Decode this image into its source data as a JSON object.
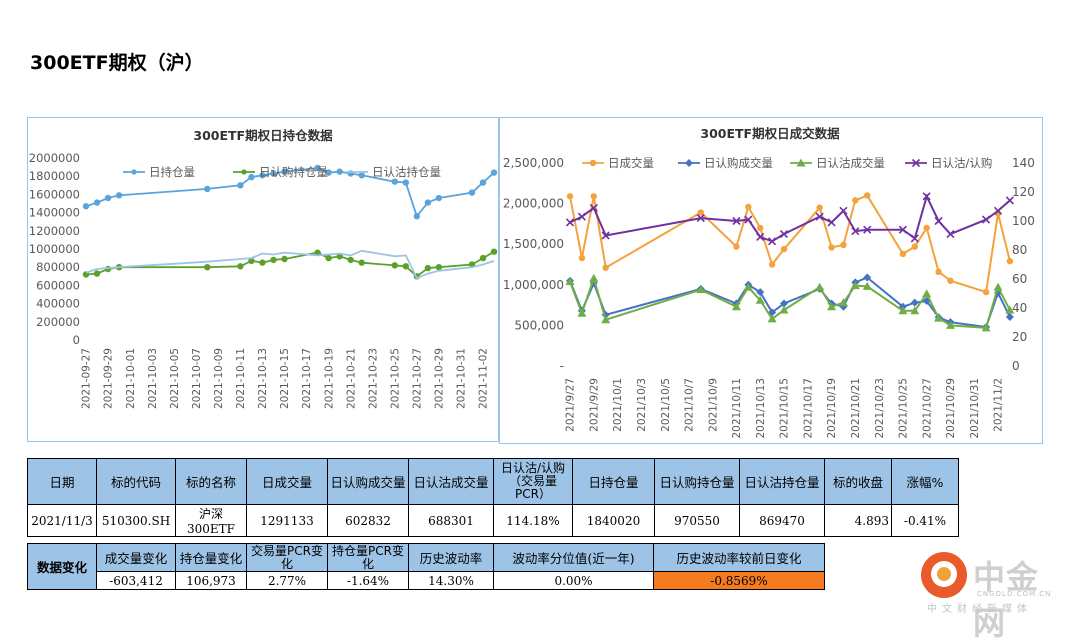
{
  "page_title": "300ETF期权（沪）",
  "chart_data": [
    {
      "type": "line",
      "title": "300ETF期权日持仓数据",
      "categories": [
        "2021-09-27",
        "2021-09-28",
        "2021-09-29",
        "2021-09-30",
        "2021-10-08",
        "2021-10-11",
        "2021-10-12",
        "2021-10-13",
        "2021-10-14",
        "2021-10-15",
        "2021-10-18",
        "2021-10-19",
        "2021-10-20",
        "2021-10-21",
        "2021-10-22",
        "2021-10-25",
        "2021-10-26",
        "2021-10-27",
        "2021-10-28",
        "2021-10-29",
        "2021-11-01",
        "2021-11-02",
        "2021-11-03"
      ],
      "x_labels": [
        "2021-09-27",
        "2021-09-29",
        "2021-10-01",
        "2021-10-03",
        "2021-10-05",
        "2021-10-07",
        "2021-10-09",
        "2021-10-11",
        "2021-10-13",
        "2021-10-15",
        "2021-10-17",
        "2021-10-19",
        "2021-10-21",
        "2021-10-23",
        "2021-10-25",
        "2021-10-27",
        "2021-10-29",
        "2021-10-31",
        "2021-11-02"
      ],
      "series": [
        {
          "name": "日持仓量",
          "color": "#5ba3d9",
          "values": [
            1470000,
            1510000,
            1560000,
            1590000,
            1660000,
            1700000,
            1790000,
            1810000,
            1830000,
            1850000,
            1890000,
            1840000,
            1850000,
            1830000,
            1810000,
            1740000,
            1730000,
            1360000,
            1510000,
            1560000,
            1620000,
            1730000,
            1840020
          ]
        },
        {
          "name": "日认购持仓量",
          "color": "#5aa02c",
          "values": [
            720000,
            730000,
            780000,
            800000,
            800000,
            810000,
            870000,
            850000,
            880000,
            890000,
            960000,
            900000,
            920000,
            880000,
            850000,
            820000,
            810000,
            700000,
            790000,
            800000,
            830000,
            900000,
            970550
          ]
        },
        {
          "name": "日认沽持仓量",
          "color": "#9dc3e6",
          "values": [
            740000,
            780000,
            790000,
            800000,
            860000,
            890000,
            900000,
            950000,
            940000,
            960000,
            930000,
            940000,
            950000,
            930000,
            980000,
            920000,
            930000,
            680000,
            730000,
            760000,
            800000,
            830000,
            869470
          ]
        }
      ],
      "ylim": [
        0,
        2000000
      ],
      "y_ticks": [
        "0",
        "200000",
        "400000",
        "600000",
        "800000",
        "1000000",
        "1200000",
        "1400000",
        "1600000",
        "1800000",
        "2000000"
      ]
    },
    {
      "type": "line",
      "title": "300ETF期权日成交数据",
      "categories": [
        "2021/9/27",
        "2021/9/28",
        "2021/9/29",
        "2021/9/30",
        "2021/10/8",
        "2021/10/11",
        "2021/10/12",
        "2021/10/13",
        "2021/10/14",
        "2021/10/15",
        "2021/10/18",
        "2021/10/19",
        "2021/10/20",
        "2021/10/21",
        "2021/10/22",
        "2021/10/25",
        "2021/10/26",
        "2021/10/27",
        "2021/10/28",
        "2021/10/29",
        "2021/11/1",
        "2021/11/2",
        "2021/11/3"
      ],
      "x_labels": [
        "2021/9/27",
        "2021/9/29",
        "2021/10/1",
        "2021/10/3",
        "2021/10/5",
        "2021/10/7",
        "2021/10/9",
        "2021/10/11",
        "2021/10/13",
        "2021/10/15",
        "2021/10/17",
        "2021/10/19",
        "2021/10/21",
        "2021/10/23",
        "2021/10/25",
        "2021/10/27",
        "2021/10/29",
        "2021/10/31",
        "2021/11/2"
      ],
      "series": [
        {
          "name": "日成交量",
          "axis": "left",
          "color": "#f4a23b",
          "marker": "circle",
          "values": [
            2090000,
            1330000,
            2090000,
            1210000,
            1890000,
            1470000,
            1960000,
            1700000,
            1250000,
            1440000,
            1950000,
            1460000,
            1490000,
            2040000,
            2100000,
            1380000,
            1470000,
            1700000,
            1160000,
            1050000,
            910000,
            1880000,
            1291133
          ]
        },
        {
          "name": "日认购成交量",
          "axis": "left",
          "color": "#4472c4",
          "marker": "diamond",
          "values": [
            1050000,
            680000,
            1020000,
            630000,
            950000,
            770000,
            1000000,
            910000,
            660000,
            770000,
            950000,
            770000,
            730000,
            1030000,
            1090000,
            730000,
            780000,
            800000,
            600000,
            540000,
            480000,
            900000,
            602832
          ]
        },
        {
          "name": "日认沽成交量",
          "axis": "left",
          "color": "#70ad47",
          "marker": "triangle",
          "values": [
            1040000,
            650000,
            1080000,
            570000,
            940000,
            730000,
            970000,
            810000,
            580000,
            690000,
            970000,
            730000,
            780000,
            990000,
            980000,
            680000,
            680000,
            890000,
            590000,
            500000,
            470000,
            970000,
            688301
          ]
        },
        {
          "name": "日认沽/认购",
          "axis": "right",
          "color": "#7030a0",
          "marker": "x",
          "values": [
            99,
            103,
            109,
            90,
            102,
            100,
            101,
            89,
            86,
            91,
            103,
            99,
            107,
            93,
            94,
            94,
            88,
            117,
            100,
            91,
            101,
            107,
            114.18
          ]
        }
      ],
      "ylim_left": [
        0,
        2500000
      ],
      "y_ticks_left": [
        "-",
        "500,000",
        "1,000,000",
        "1,500,000",
        "2,000,000",
        "2,500,000"
      ],
      "ylim_right": [
        0,
        140
      ],
      "y_ticks_right": [
        "0",
        "20",
        "40",
        "60",
        "80",
        "100",
        "120",
        "140"
      ]
    }
  ],
  "table1": {
    "headers": [
      "日期",
      "标的代码",
      "标的名称",
      "日成交量",
      "日认购成交量",
      "日认沽成交量",
      "日认沽/认购（交易量PCR）",
      "日持仓量",
      "日认购持仓量",
      "日认沽持仓量",
      "标的收盘",
      "涨幅%"
    ],
    "rows": [
      [
        "2021/11/3",
        "510300.SH",
        "沪深300ETF",
        "1291133",
        "602832",
        "688301",
        "114.18%",
        "1840020",
        "970550",
        "869470",
        "4.893",
        "-0.41%"
      ]
    ]
  },
  "table2": {
    "label": "数据变化",
    "headers": [
      "成交量变化",
      "持仓量变化",
      "交易量PCR变化",
      "持仓量PCR变化",
      "历史波动率",
      "波动率分位值(近一年)",
      "历史波动率较前日变化"
    ],
    "values": [
      "-603,412",
      "106,973",
      "2.77%",
      "-1.64%",
      "14.30%",
      "0.00%",
      "-0.8569%"
    ]
  },
  "logo": {
    "name": "中金网",
    "domain": "CNGOLD.COM.CN",
    "slogan": "中文财经新媒体"
  }
}
